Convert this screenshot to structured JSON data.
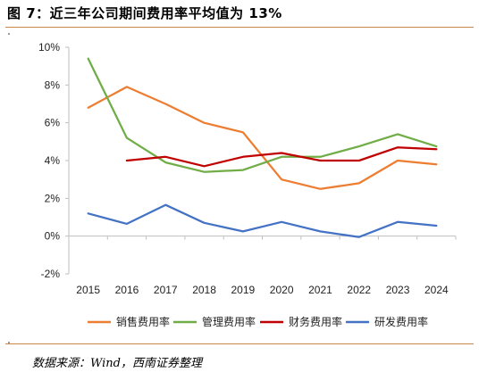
{
  "header": {
    "title": "图 7：近三年公司期间费用率平均值为 13%"
  },
  "footer": {
    "source": "数据来源：Wind，西南证券整理"
  },
  "chart_data": {
    "type": "line",
    "x": [
      "2015",
      "2016",
      "2017",
      "2018",
      "2019",
      "2020",
      "2021",
      "2022",
      "2023",
      "2024"
    ],
    "series": [
      {
        "name": "销售费用率",
        "color": "#ed7d31",
        "values": [
          6.8,
          7.9,
          7.0,
          6.0,
          5.5,
          3.0,
          2.5,
          2.8,
          4.0,
          3.8
        ]
      },
      {
        "name": "管理费用率",
        "color": "#70ad47",
        "values": [
          9.4,
          5.2,
          3.9,
          3.4,
          3.5,
          4.2,
          4.2,
          4.75,
          5.4,
          4.75
        ]
      },
      {
        "name": "财务费用率",
        "color": "#c00000",
        "values": [
          null,
          4.0,
          4.2,
          3.7,
          4.2,
          4.4,
          4.0,
          4.0,
          4.7,
          4.6
        ]
      },
      {
        "name": "研发费用率",
        "color": "#4472c4",
        "values": [
          1.2,
          0.65,
          1.65,
          0.7,
          0.25,
          0.75,
          0.25,
          -0.05,
          0.75,
          0.55
        ]
      }
    ],
    "y_ticks": [
      "10%",
      "8%",
      "6%",
      "4%",
      "2%",
      "0%",
      "-2%"
    ],
    "ylim": [
      -2,
      10
    ],
    "grid": false,
    "legend_position": "bottom"
  }
}
